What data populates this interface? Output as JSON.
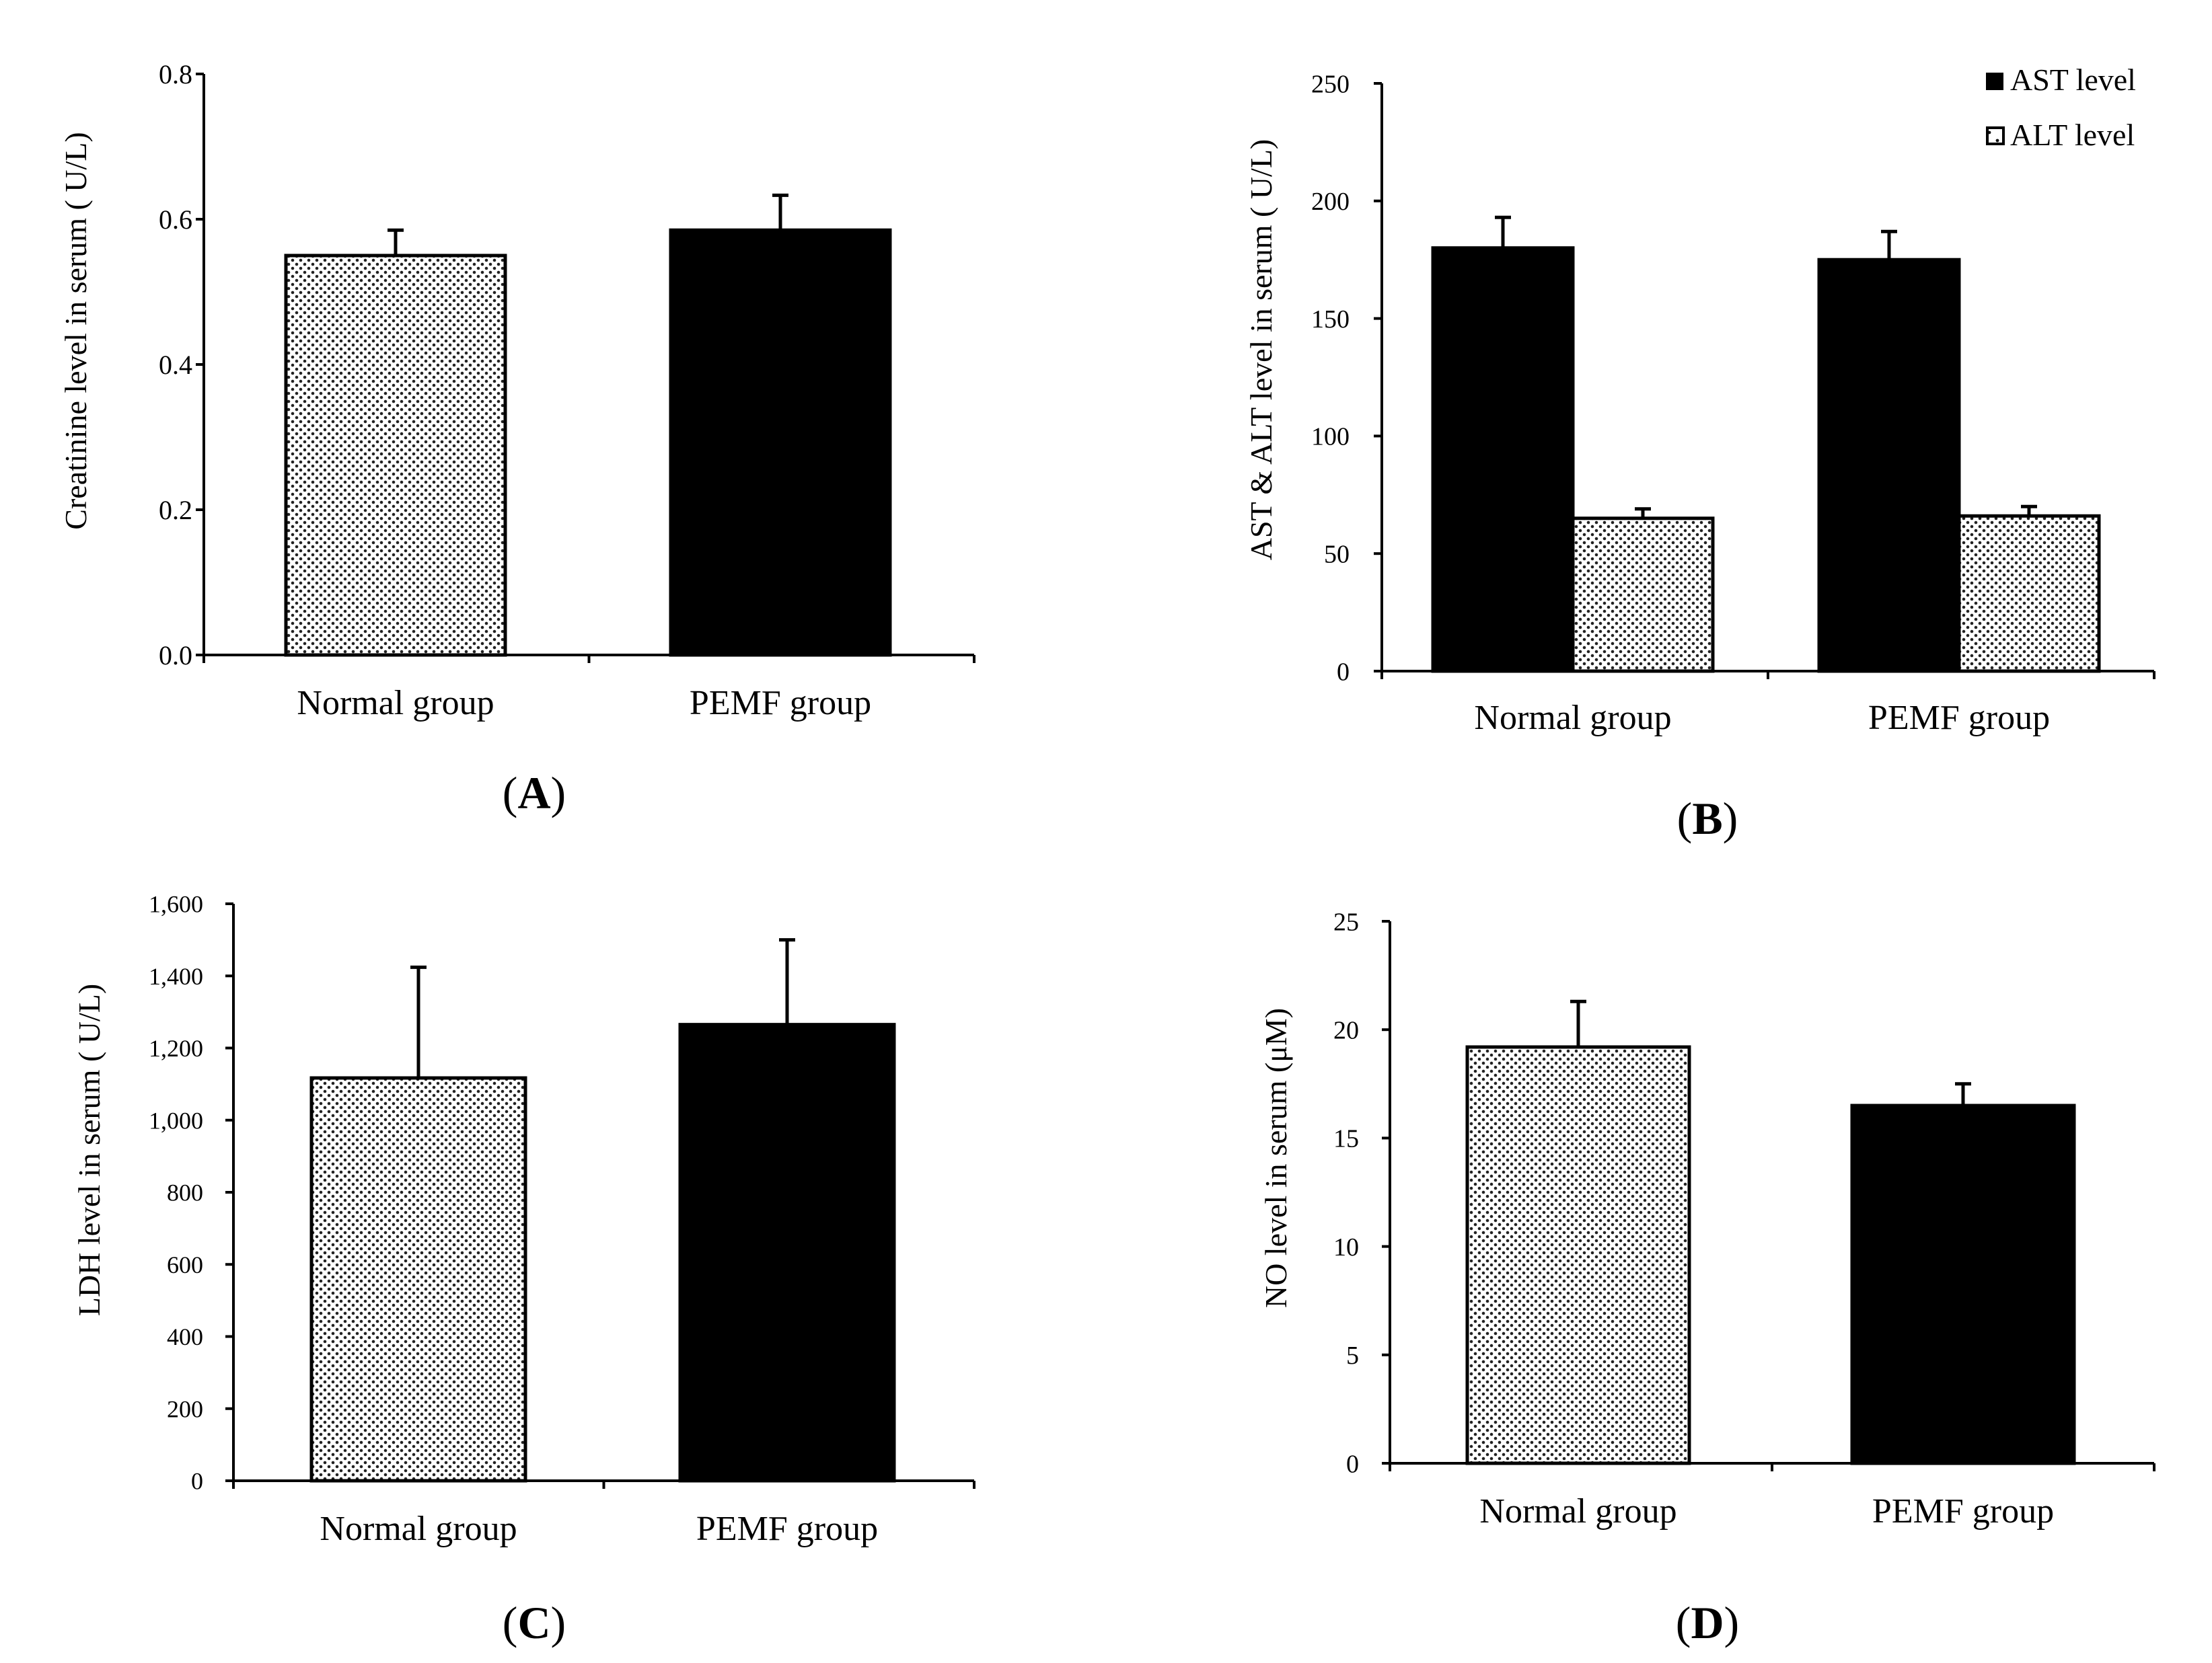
{
  "chart_data": [
    {
      "type": "bar",
      "panel_label": "A",
      "categories": [
        "Normal group",
        "PEMF group"
      ],
      "values": [
        0.55,
        0.585
      ],
      "errors": [
        0.035,
        0.048
      ],
      "bar_styles": [
        "dotted",
        "solid"
      ],
      "title": "",
      "xlabel": "",
      "ylabel": "Creatinine level in serum ( U/L)",
      "ylim": [
        0,
        0.8
      ],
      "yticks": [
        0,
        0.2,
        0.4,
        0.6,
        0.8
      ],
      "ytick_labels": [
        "0.0",
        "0.2",
        "0.4",
        "0.6",
        "0.8"
      ],
      "grid": false
    },
    {
      "type": "bar",
      "panel_label": "B",
      "categories": [
        "Normal group",
        "PEMF group"
      ],
      "series": [
        {
          "name": "AST level",
          "style": "solid",
          "values": [
            180,
            175
          ],
          "errors": [
            13,
            12
          ]
        },
        {
          "name": "ALT level",
          "style": "dotted",
          "values": [
            65,
            66
          ],
          "errors": [
            4,
            4
          ]
        }
      ],
      "title": "",
      "xlabel": "",
      "ylabel": "AST & ALT  level in serum ( U/L)",
      "ylim": [
        0,
        250
      ],
      "yticks": [
        0,
        50,
        100,
        150,
        200,
        250
      ],
      "ytick_labels": [
        "0",
        "50",
        "100",
        "150",
        "200",
        "250"
      ],
      "legend_position": "top-right",
      "grid": false
    },
    {
      "type": "bar",
      "panel_label": "C",
      "categories": [
        "Normal group",
        "PEMF group"
      ],
      "values": [
        1117,
        1265
      ],
      "errors": [
        307,
        235
      ],
      "bar_styles": [
        "dotted",
        "solid"
      ],
      "title": "",
      "xlabel": "",
      "ylabel": "LDH level in serum ( U/L)",
      "ylim": [
        0,
        1600
      ],
      "yticks": [
        0,
        200,
        400,
        600,
        800,
        1000,
        1200,
        1400,
        1600
      ],
      "ytick_labels": [
        "0",
        "200",
        "400",
        "600",
        "800",
        "1,000",
        "1,200",
        "1,400",
        "1,600"
      ],
      "grid": false
    },
    {
      "type": "bar",
      "panel_label": "D",
      "categories": [
        "Normal group",
        "PEMF group"
      ],
      "values": [
        19.2,
        16.5
      ],
      "errors": [
        2.1,
        1.0
      ],
      "bar_styles": [
        "dotted",
        "solid"
      ],
      "title": "",
      "xlabel": "",
      "ylabel": "NO level in serum (μM)",
      "ylim": [
        0,
        25
      ],
      "yticks": [
        0,
        5,
        10,
        15,
        20,
        25
      ],
      "ytick_labels": [
        "0",
        "5",
        "10",
        "15",
        "20",
        "25"
      ],
      "grid": false
    }
  ]
}
